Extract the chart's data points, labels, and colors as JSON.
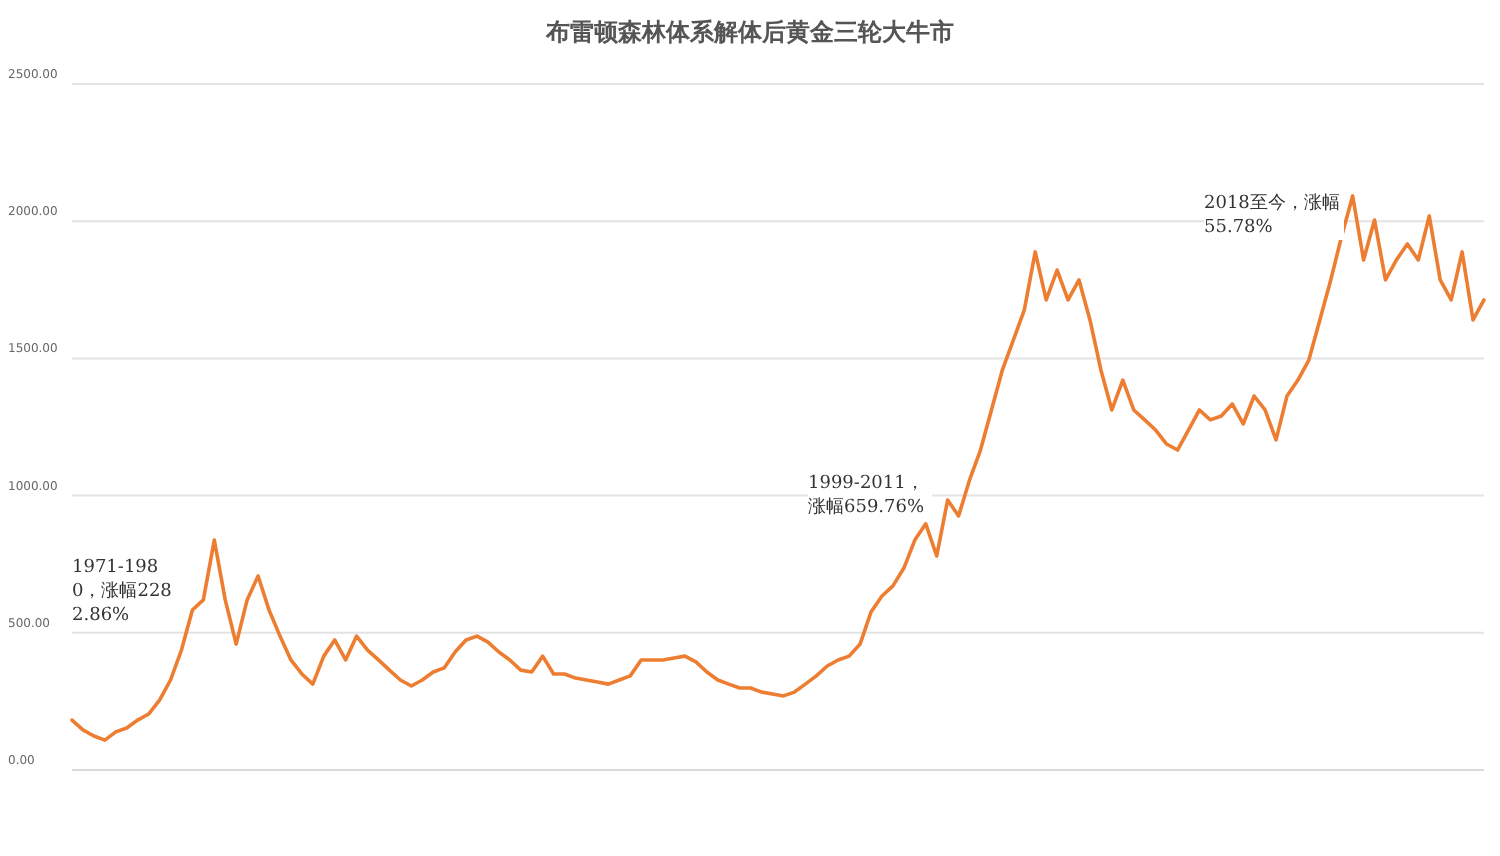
{
  "chart_data": {
    "type": "line",
    "title": "布雷顿森林体系解体后黄金三轮大牛市",
    "categories": [
      null,
      null,
      null,
      null,
      null,
      null,
      null,
      null,
      null,
      null,
      null,
      null,
      null,
      null,
      null,
      null,
      null,
      null,
      null,
      null,
      null,
      null,
      null,
      null,
      null,
      null,
      null,
      null,
      null,
      null,
      null,
      null,
      null,
      null,
      null,
      null,
      null,
      null,
      null,
      null,
      null,
      null,
      null,
      null,
      null,
      null,
      null,
      null,
      null,
      null,
      null,
      null,
      null,
      null,
      null,
      null,
      null,
      null,
      null,
      null,
      null,
      null,
      null,
      null,
      null,
      null,
      null,
      null,
      null,
      null,
      null,
      null,
      null,
      null,
      null,
      null,
      null,
      null,
      null,
      null,
      null,
      null,
      null,
      null,
      null,
      null,
      null,
      null,
      null,
      null,
      null,
      null,
      null,
      null,
      null,
      null,
      null,
      null,
      null,
      null,
      null,
      null,
      null,
      null,
      null,
      null,
      null,
      null,
      null,
      null,
      null,
      null,
      null,
      null,
      null,
      null,
      null,
      null,
      null,
      null,
      null,
      null,
      null,
      null,
      null,
      null,
      null,
      null,
      null,
      null
    ],
    "series": [
      {
        "color": "#ed7d31",
        "values": [
          182,
          146,
          124,
          109,
          139,
          153,
          182,
          204,
          255,
          328,
          437,
          583,
          620,
          838,
          620,
          459,
          620,
          707,
          583,
          488,
          401,
          350,
          313,
          415,
          474,
          401,
          488,
          437,
          401,
          364,
          328,
          306,
          328,
          357,
          372,
          430,
          474,
          488,
          466,
          430,
          401,
          364,
          357,
          415,
          350,
          350,
          335,
          328,
          321,
          313,
          328,
          343,
          401,
          401,
          401,
          408,
          415,
          394,
          357,
          328,
          313,
          299,
          299,
          284,
          277,
          270,
          284,
          313,
          343,
          379,
          401,
          415,
          459,
          576,
          634,
          671,
          736,
          838,
          897,
          780,
          984,
          926,
          1057,
          1166,
          1312,
          1458,
          1567,
          1676,
          1888,
          1713,
          1822,
          1713,
          1786,
          1640,
          1458,
          1312,
          1421,
          1312,
          1276,
          1239,
          1188,
          1166,
          1239,
          1312,
          1276,
          1290,
          1334,
          1261,
          1363,
          1312,
          1203,
          1363,
          1421,
          1494,
          1640,
          1786,
          1946,
          2092,
          1859,
          2004,
          1786,
          1859,
          1917,
          1859,
          2019,
          1786,
          1713,
          1888,
          1640,
          1713
        ]
      }
    ],
    "ylim": [
      0,
      2500
    ],
    "yticks": [
      {
        "value": 0,
        "label": "0.00"
      },
      {
        "value": 500,
        "label": "500.00"
      },
      {
        "value": 1000,
        "label": "1000.00"
      },
      {
        "value": 1500,
        "label": "1500.00"
      },
      {
        "value": 2000,
        "label": "2000.00"
      },
      {
        "value": 2500,
        "label": "2500.00"
      }
    ],
    "grid": "y",
    "annotations": [
      "1971-1980，涨幅2282.86%",
      "1999-2011，涨幅659.76%",
      "2018至今，涨幅55.78%"
    ]
  }
}
